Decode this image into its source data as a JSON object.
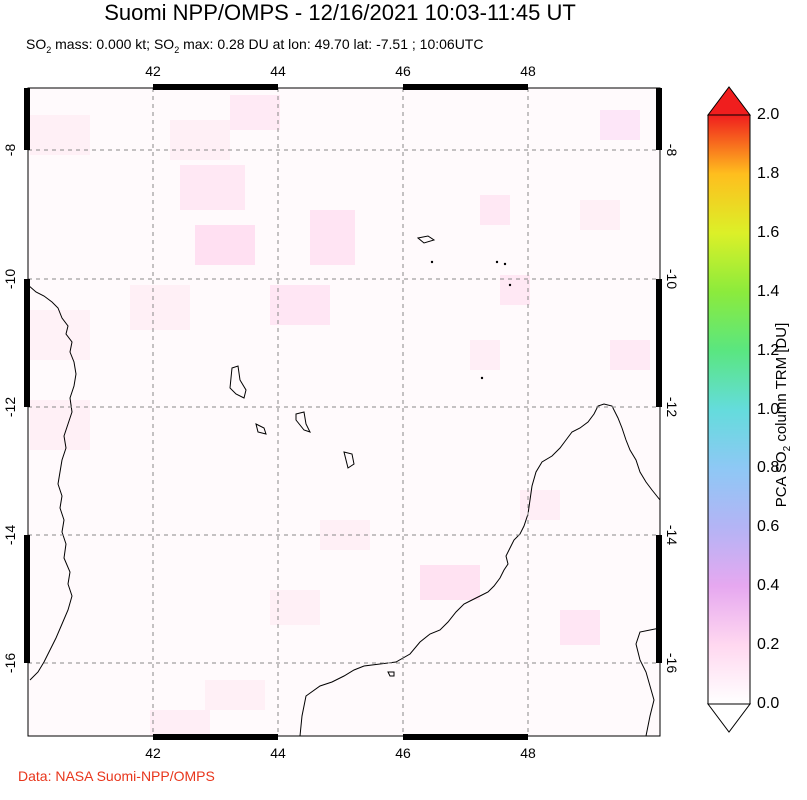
{
  "header": {
    "title": "Suomi NPP/OMPS - 12/16/2021 10:03-11:45 UT",
    "subtitle_prefix": "SO",
    "subtitle_sub": "2",
    "subtitle_mass": " mass: 0.000 kt; SO",
    "subtitle_sub2": "2",
    "subtitle_rest": " max: 0.28 DU at lon: 49.70 lat: -7.51 ; 10:06UTC"
  },
  "credit": "Data: NASA Suomi-NPP/OMPS",
  "map": {
    "lon_ticks": [
      "42",
      "44",
      "46",
      "48"
    ],
    "lat_ticks": [
      "-8",
      "-10",
      "-12",
      "-14",
      "-16"
    ]
  },
  "colorbar": {
    "title_prefix": "PCA SO",
    "title_sub": "2",
    "title_rest": " column TRM [DU]",
    "ticks": [
      "0.0",
      "0.2",
      "0.4",
      "0.6",
      "0.8",
      "1.0",
      "1.2",
      "1.4",
      "1.6",
      "1.8",
      "2.0"
    ],
    "colors": [
      "#ffffff",
      "#ffd8f0",
      "#e6a8f0",
      "#b4b4f5",
      "#8ec8f5",
      "#64dcdc",
      "#5ae680",
      "#8ceb3c",
      "#dcf028",
      "#ffbe1e",
      "#ff6e14",
      "#f01e1e"
    ]
  }
}
